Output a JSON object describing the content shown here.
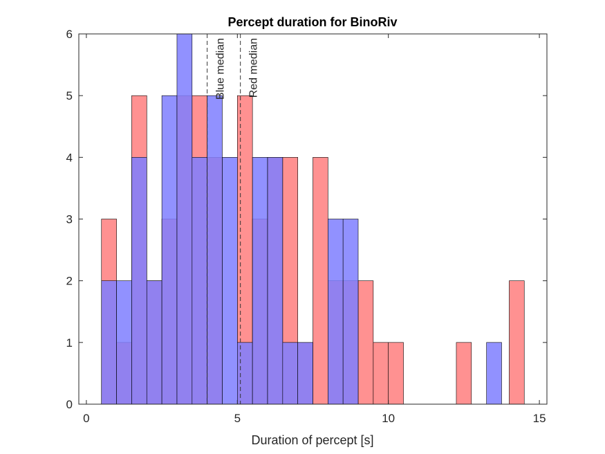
{
  "chart_data": {
    "type": "bar",
    "title": "Percept duration for BinoRiv",
    "xlabel": "Duration of percept [s]",
    "ylabel": "",
    "xlim": [
      -0.25,
      15.25
    ],
    "ylim": [
      0,
      6
    ],
    "xticks": [
      0,
      5,
      10,
      15
    ],
    "yticks": [
      0,
      1,
      2,
      3,
      4,
      5,
      6
    ],
    "bin_width": 0.5,
    "grid": false,
    "series": [
      {
        "color": "#ff7f7f",
        "bins": [
          {
            "start": 0.5,
            "count": 3
          },
          {
            "start": 1.0,
            "count": 1
          },
          {
            "start": 1.5,
            "count": 5
          },
          {
            "start": 2.0,
            "count": 2
          },
          {
            "start": 2.5,
            "count": 3
          },
          {
            "start": 3.0,
            "count": 5
          },
          {
            "start": 3.5,
            "count": 5
          },
          {
            "start": 4.0,
            "count": 4
          },
          {
            "start": 5.0,
            "count": 5
          },
          {
            "start": 5.5,
            "count": 3
          },
          {
            "start": 6.0,
            "count": 4
          },
          {
            "start": 6.5,
            "count": 4
          },
          {
            "start": 7.0,
            "count": 1
          },
          {
            "start": 7.5,
            "count": 4
          },
          {
            "start": 8.0,
            "count": 2
          },
          {
            "start": 8.5,
            "count": 2
          },
          {
            "start": 9.0,
            "count": 2
          },
          {
            "start": 9.5,
            "count": 1
          },
          {
            "start": 10.0,
            "count": 1
          },
          {
            "start": 12.25,
            "count": 1
          },
          {
            "start": 14.0,
            "count": 2
          }
        ]
      },
      {
        "color": "#7f7fff",
        "bins": [
          {
            "start": 0.5,
            "count": 2
          },
          {
            "start": 1.0,
            "count": 2
          },
          {
            "start": 1.5,
            "count": 4
          },
          {
            "start": 2.0,
            "count": 2
          },
          {
            "start": 2.5,
            "count": 5
          },
          {
            "start": 3.0,
            "count": 6
          },
          {
            "start": 3.5,
            "count": 4
          },
          {
            "start": 4.0,
            "count": 5
          },
          {
            "start": 4.5,
            "count": 4
          },
          {
            "start": 5.0,
            "count": 1
          },
          {
            "start": 5.5,
            "count": 4
          },
          {
            "start": 6.0,
            "count": 4
          },
          {
            "start": 6.5,
            "count": 1
          },
          {
            "start": 7.0,
            "count": 1
          },
          {
            "start": 8.0,
            "count": 3
          },
          {
            "start": 8.5,
            "count": 3
          },
          {
            "start": 13.25,
            "count": 1
          }
        ]
      }
    ],
    "medians": [
      {
        "label": "Blue median",
        "value": 4.0
      },
      {
        "label": "Red median",
        "value": 5.1
      }
    ]
  }
}
